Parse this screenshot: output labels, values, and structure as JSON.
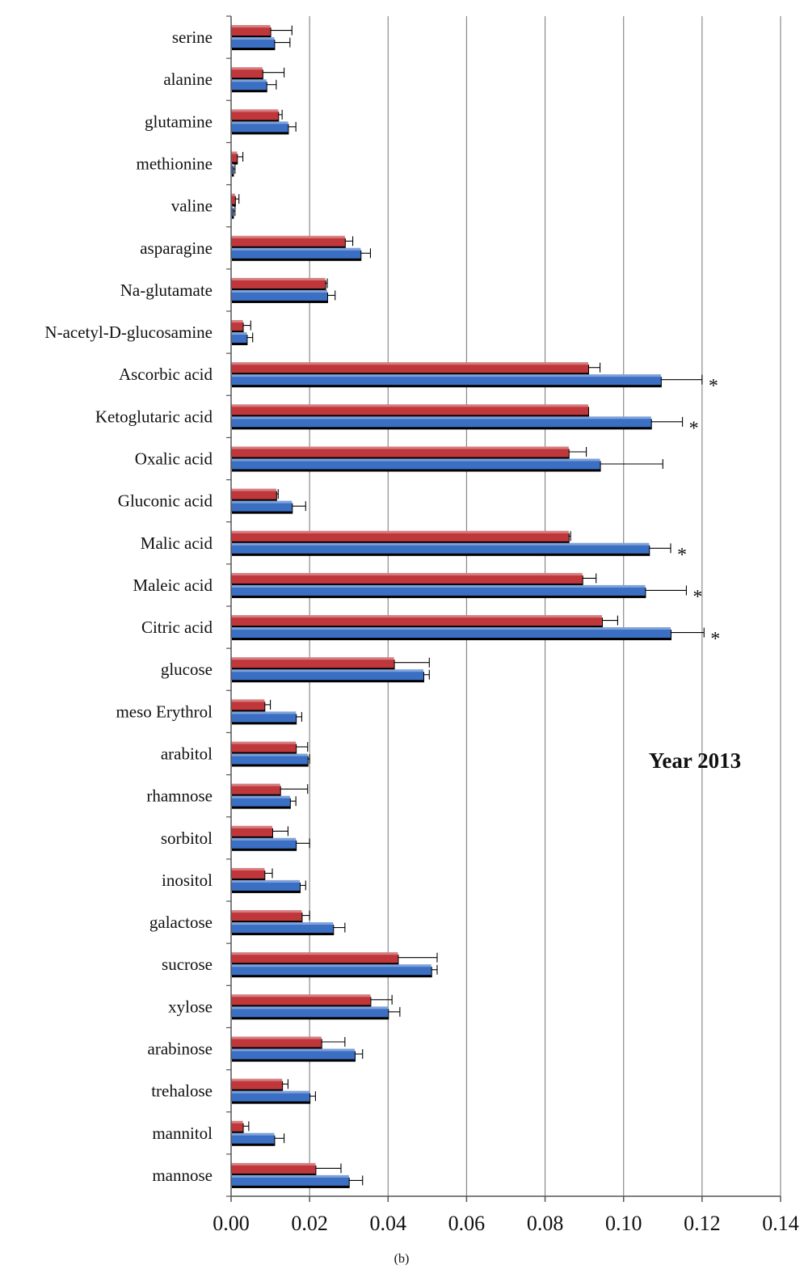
{
  "chart_data": {
    "type": "bar",
    "orientation": "horizontal",
    "categories": [
      "serine",
      "alanine",
      "glutamine",
      "methionine",
      "valine",
      "asparagine",
      "Na-glutamate",
      "N-acetyl-D-glucosamine",
      "Ascorbic acid",
      "Ketoglutaric acid",
      "Oxalic acid",
      "Gluconic acid",
      "Malic acid",
      "Maleic acid",
      "Citric acid",
      "glucose",
      "meso Erythrol",
      "arabitol",
      "rhamnose",
      "sorbitol",
      "inositol",
      "galactose",
      "sucrose",
      "xylose",
      "arabinose",
      "trehalose",
      "mannitol",
      "mannose"
    ],
    "series": [
      {
        "color": "#c0373b",
        "values": [
          0.01,
          0.008,
          0.012,
          0.0015,
          0.001,
          0.029,
          0.024,
          0.003,
          0.091,
          0.091,
          0.086,
          0.0115,
          0.086,
          0.0895,
          0.0945,
          0.0415,
          0.0085,
          0.0165,
          0.0125,
          0.0105,
          0.0085,
          0.018,
          0.0425,
          0.0355,
          0.023,
          0.013,
          0.003,
          0.0215
        ],
        "errors": [
          0.0055,
          0.0055,
          0.001,
          0.0015,
          0.001,
          0.002,
          0.0005,
          0.002,
          0.003,
          0.0,
          0.0045,
          0.0005,
          0.0005,
          0.0035,
          0.004,
          0.009,
          0.0015,
          0.003,
          0.007,
          0.004,
          0.002,
          0.002,
          0.01,
          0.0055,
          0.006,
          0.0015,
          0.0015,
          0.0065
        ]
      },
      {
        "color": "#3a6fc4",
        "values": [
          0.011,
          0.009,
          0.0145,
          0.0005,
          0.0005,
          0.033,
          0.0245,
          0.004,
          0.1095,
          0.107,
          0.094,
          0.0155,
          0.1065,
          0.1055,
          0.112,
          0.049,
          0.0165,
          0.0195,
          0.015,
          0.0165,
          0.0175,
          0.026,
          0.051,
          0.04,
          0.0315,
          0.02,
          0.011,
          0.03
        ],
        "errors": [
          0.004,
          0.0025,
          0.002,
          0.0005,
          0.0005,
          0.0025,
          0.002,
          0.0015,
          0.0105,
          0.008,
          0.016,
          0.0035,
          0.0055,
          0.0105,
          0.0085,
          0.0015,
          0.0015,
          0.0005,
          0.0015,
          0.0035,
          0.0015,
          0.003,
          0.0015,
          0.003,
          0.002,
          0.0015,
          0.0025,
          0.0035
        ]
      }
    ],
    "significant": [
      "Ascorbic acid",
      "Ketoglutaric acid",
      "Malic acid",
      "Maleic acid",
      "Citric acid"
    ],
    "significance_mark": "*",
    "xticks": [
      "0.00",
      "0.02",
      "0.04",
      "0.06",
      "0.08",
      "0.10",
      "0.12",
      "0.14"
    ],
    "xlim": [
      0,
      0.14
    ],
    "grid": "vertical",
    "annotation": "Year 2013",
    "caption": "(b)",
    "title": "",
    "xlabel": "",
    "ylabel": ""
  }
}
